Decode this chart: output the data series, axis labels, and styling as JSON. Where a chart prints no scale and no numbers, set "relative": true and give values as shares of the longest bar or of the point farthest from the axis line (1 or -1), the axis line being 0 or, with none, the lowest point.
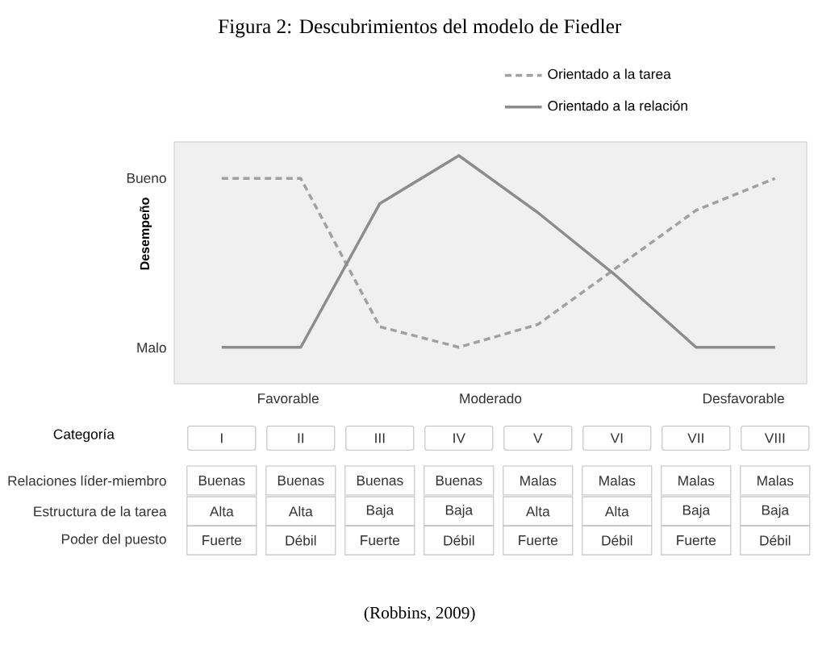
{
  "chart_data": {
    "type": "line",
    "title": "Figura 2: Descubrimientos del modelo de Fiedler",
    "xlabel": "Categoría",
    "ylabel": "Desempeño",
    "relative": true,
    "categories": [
      "I",
      "II",
      "III",
      "IV",
      "V",
      "VI",
      "VII",
      "VIII"
    ],
    "legend": "top",
    "marker": "none",
    "grid": false,
    "series": [
      {
        "name": "Orientado a la tarea",
        "color": "#a0a0a0",
        "line_style": "dashed",
        "values": [
          0.9,
          0.9,
          0.25,
          0.16,
          0.26,
          0.51,
          0.76,
          0.9
        ]
      },
      {
        "name": "Orientado a la relación",
        "color": "#8c8c8c",
        "line_style": "solid",
        "values": [
          0.16,
          0.16,
          0.79,
          1,
          0.75,
          0.47,
          0.16,
          0.16
        ]
      }
    ],
    "annotations": [
      "Bueno",
      "Malo",
      "Favorable",
      "Moderado",
      "Desfavorable",
      "Relaciones líder-miembro",
      "Buenas",
      "Buenas",
      "Buenas",
      "Buenas",
      "Malas",
      "Malas",
      "Malas",
      "Malas",
      "Estructura de la tarea",
      "Alta",
      "Alta",
      "Baja",
      "Baja",
      "Alta",
      "Alta",
      "Baja",
      "Baja",
      "Poder del puesto",
      "Fuerte",
      "Débil",
      "Fuerte",
      "Débil",
      "Fuerte",
      "Débil",
      "Fuerte",
      "Débil",
      "(Robbins, 2009)"
    ]
  }
}
